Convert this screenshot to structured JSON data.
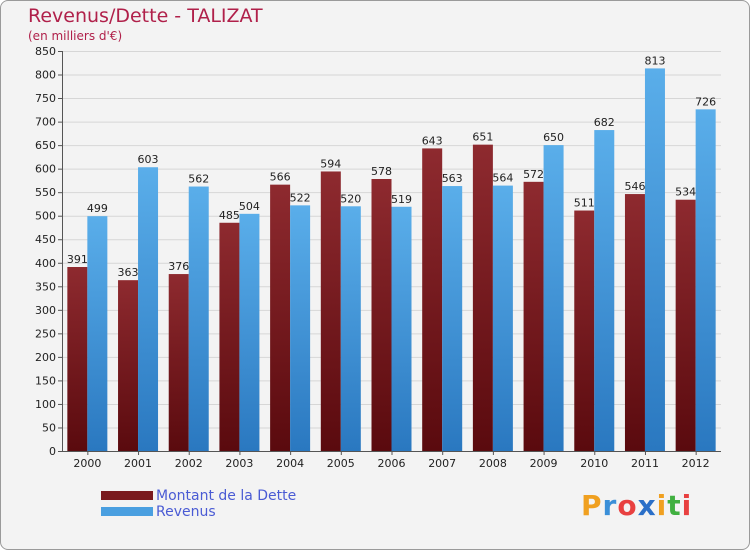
{
  "header": {
    "title": "Revenus/Dette - TALIZAT",
    "subtitle": "(en milliers d'€)"
  },
  "colors": {
    "dette": "#7a1a1e",
    "revenus": "#4a9fe0",
    "title": "#b0204a",
    "legend_text": "#4a5bd4"
  },
  "chart_data": {
    "type": "bar",
    "title": "Revenus/Dette - TALIZAT",
    "subtitle": "(en milliers d'€)",
    "categories": [
      "2000",
      "2001",
      "2002",
      "2003",
      "2004",
      "2005",
      "2006",
      "2007",
      "2008",
      "2009",
      "2010",
      "2011",
      "2012"
    ],
    "series": [
      {
        "name": "Montant de la Dette",
        "values": [
          391,
          363,
          376,
          485,
          566,
          594,
          578,
          643,
          651,
          572,
          511,
          546,
          534
        ]
      },
      {
        "name": "Revenus",
        "values": [
          499,
          603,
          562,
          504,
          522,
          520,
          519,
          563,
          564,
          650,
          682,
          813,
          726
        ]
      }
    ],
    "ylim": [
      0,
      850
    ],
    "yticks": [
      0,
      50,
      100,
      150,
      200,
      250,
      300,
      350,
      400,
      450,
      500,
      550,
      600,
      650,
      700,
      750,
      800,
      850
    ],
    "grid": true,
    "legend_position": "bottom-left"
  },
  "legend": {
    "items": [
      {
        "label": "Montant de la Dette",
        "color": "#7a1a1e"
      },
      {
        "label": "Revenus",
        "color": "#4a9fe0"
      }
    ]
  },
  "logo": {
    "letters": [
      "P",
      "r",
      "o",
      "x",
      "i",
      "t",
      "i"
    ],
    "colors": [
      "#f0a020",
      "#3a8fd8",
      "#e84040",
      "#2a6fc8",
      "#f0a020",
      "#40b040",
      "#e84040"
    ]
  }
}
